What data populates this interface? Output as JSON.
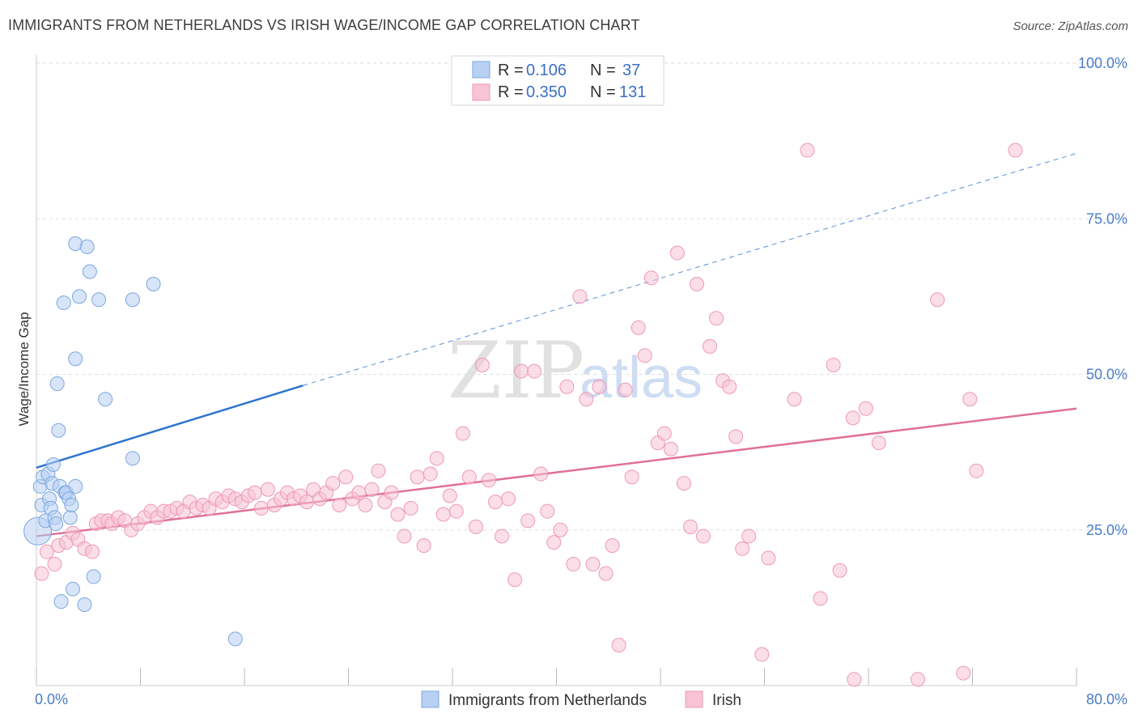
{
  "title": "IMMIGRANTS FROM NETHERLANDS VS IRISH WAGE/INCOME GAP CORRELATION CHART",
  "source": "Source: ZipAtlas.com",
  "watermark": {
    "zip": "ZIP",
    "atlas": "atlas"
  },
  "colors": {
    "blue_fill": "#b8d0f2",
    "blue_stroke": "#7aa7e0",
    "blue_line": "#2f74d0",
    "pink_fill": "#f8c3d4",
    "pink_stroke": "#ee99b6",
    "pink_line": "#e0709a",
    "tick": "#4a7cc9",
    "grid": "#dddddd"
  },
  "legend": {
    "rows": [
      {
        "r_key": "R =",
        "r_val": "0.106",
        "n_key": "N =",
        "n_val": "37"
      },
      {
        "r_key": "R =",
        "r_val": "0.350",
        "n_key": "N =",
        "n_val": "131"
      }
    ]
  },
  "bottom_legend": [
    "Immigrants from Netherlands",
    "Irish"
  ],
  "chart_data": {
    "type": "scatter",
    "title": "IMMIGRANTS FROM NETHERLANDS VS IRISH WAGE/INCOME GAP CORRELATION CHART",
    "xlabel": "",
    "ylabel": "Wage/Income Gap",
    "xlim": [
      0,
      80
    ],
    "ylim": [
      0,
      100
    ],
    "x_tick_labels": [
      "0.0%",
      "80.0%"
    ],
    "y_tick_labels": [
      "25.0%",
      "50.0%",
      "75.0%",
      "100.0%"
    ],
    "y_tick_values": [
      25,
      50,
      75,
      100
    ],
    "grid": true,
    "legend_position": "top-center",
    "series": [
      {
        "name": "Immigrants from Netherlands",
        "R": 0.106,
        "N": 37,
        "trend": {
          "x": [
            0,
            20.5
          ],
          "y": [
            35.0,
            48.2
          ],
          "dashed_to": [
            80,
            85.5
          ]
        },
        "points": [
          {
            "x": 0.1,
            "y": 24.8,
            "big": true
          },
          {
            "x": 0.3,
            "y": 32.0
          },
          {
            "x": 0.4,
            "y": 29.0
          },
          {
            "x": 0.5,
            "y": 33.5
          },
          {
            "x": 0.7,
            "y": 26.5
          },
          {
            "x": 0.9,
            "y": 34.0
          },
          {
            "x": 1.0,
            "y": 30.0
          },
          {
            "x": 1.1,
            "y": 28.5
          },
          {
            "x": 1.2,
            "y": 32.5
          },
          {
            "x": 1.3,
            "y": 35.5
          },
          {
            "x": 1.4,
            "y": 27.0
          },
          {
            "x": 1.5,
            "y": 26.0
          },
          {
            "x": 1.6,
            "y": 48.5
          },
          {
            "x": 1.7,
            "y": 41.0
          },
          {
            "x": 1.8,
            "y": 32.0
          },
          {
            "x": 1.9,
            "y": 13.5
          },
          {
            "x": 2.1,
            "y": 61.5
          },
          {
            "x": 2.2,
            "y": 31.0
          },
          {
            "x": 2.3,
            "y": 31.0
          },
          {
            "x": 2.5,
            "y": 30.0
          },
          {
            "x": 2.6,
            "y": 27.0
          },
          {
            "x": 2.7,
            "y": 29.0
          },
          {
            "x": 2.8,
            "y": 15.5
          },
          {
            "x": 3.0,
            "y": 52.5
          },
          {
            "x": 3.0,
            "y": 71.0
          },
          {
            "x": 3.0,
            "y": 32.0
          },
          {
            "x": 3.3,
            "y": 62.5
          },
          {
            "x": 3.7,
            "y": 13.0
          },
          {
            "x": 3.9,
            "y": 70.5
          },
          {
            "x": 4.1,
            "y": 66.5
          },
          {
            "x": 4.4,
            "y": 17.5
          },
          {
            "x": 4.8,
            "y": 62.0
          },
          {
            "x": 5.3,
            "y": 46.0
          },
          {
            "x": 7.4,
            "y": 62.0
          },
          {
            "x": 7.4,
            "y": 36.5
          },
          {
            "x": 9.0,
            "y": 64.5
          },
          {
            "x": 15.3,
            "y": 7.5
          }
        ]
      },
      {
        "name": "Irish",
        "R": 0.35,
        "N": 131,
        "trend": {
          "x": [
            0,
            80
          ],
          "y": [
            24.0,
            44.5
          ]
        },
        "points": [
          {
            "x": 0.4,
            "y": 18.0
          },
          {
            "x": 0.8,
            "y": 21.5
          },
          {
            "x": 1.4,
            "y": 19.5
          },
          {
            "x": 1.7,
            "y": 22.5
          },
          {
            "x": 2.3,
            "y": 23.0
          },
          {
            "x": 2.8,
            "y": 24.5
          },
          {
            "x": 3.2,
            "y": 23.5
          },
          {
            "x": 3.7,
            "y": 22.0
          },
          {
            "x": 4.3,
            "y": 21.5
          },
          {
            "x": 4.6,
            "y": 26.0
          },
          {
            "x": 5.0,
            "y": 26.5
          },
          {
            "x": 5.5,
            "y": 26.5
          },
          {
            "x": 5.8,
            "y": 26.0
          },
          {
            "x": 6.3,
            "y": 27.0
          },
          {
            "x": 6.8,
            "y": 26.5
          },
          {
            "x": 7.3,
            "y": 25.0
          },
          {
            "x": 7.8,
            "y": 26.0
          },
          {
            "x": 8.3,
            "y": 27.0
          },
          {
            "x": 8.8,
            "y": 28.0
          },
          {
            "x": 9.3,
            "y": 27.0
          },
          {
            "x": 9.8,
            "y": 28.0
          },
          {
            "x": 10.3,
            "y": 28.0
          },
          {
            "x": 10.8,
            "y": 28.5
          },
          {
            "x": 11.3,
            "y": 28.0
          },
          {
            "x": 11.8,
            "y": 29.5
          },
          {
            "x": 12.3,
            "y": 28.5
          },
          {
            "x": 12.8,
            "y": 29.0
          },
          {
            "x": 13.3,
            "y": 28.5
          },
          {
            "x": 13.8,
            "y": 30.0
          },
          {
            "x": 14.3,
            "y": 29.5
          },
          {
            "x": 14.8,
            "y": 30.5
          },
          {
            "x": 15.3,
            "y": 30.0
          },
          {
            "x": 15.8,
            "y": 29.5
          },
          {
            "x": 16.3,
            "y": 30.5
          },
          {
            "x": 16.8,
            "y": 31.0
          },
          {
            "x": 17.3,
            "y": 28.5
          },
          {
            "x": 17.8,
            "y": 31.5
          },
          {
            "x": 18.3,
            "y": 29.0
          },
          {
            "x": 18.8,
            "y": 30.0
          },
          {
            "x": 19.3,
            "y": 31.0
          },
          {
            "x": 19.8,
            "y": 30.0
          },
          {
            "x": 20.3,
            "y": 30.5
          },
          {
            "x": 20.8,
            "y": 29.5
          },
          {
            "x": 21.3,
            "y": 31.5
          },
          {
            "x": 21.8,
            "y": 30.0
          },
          {
            "x": 22.3,
            "y": 31.0
          },
          {
            "x": 22.8,
            "y": 32.5
          },
          {
            "x": 23.3,
            "y": 29.0
          },
          {
            "x": 23.8,
            "y": 33.5
          },
          {
            "x": 24.3,
            "y": 30.0
          },
          {
            "x": 24.8,
            "y": 31.0
          },
          {
            "x": 25.3,
            "y": 29.0
          },
          {
            "x": 25.8,
            "y": 31.5
          },
          {
            "x": 26.3,
            "y": 34.5
          },
          {
            "x": 26.8,
            "y": 29.5
          },
          {
            "x": 27.3,
            "y": 31.0
          },
          {
            "x": 27.8,
            "y": 27.5
          },
          {
            "x": 28.3,
            "y": 24.0
          },
          {
            "x": 28.8,
            "y": 28.5
          },
          {
            "x": 29.3,
            "y": 33.5
          },
          {
            "x": 29.8,
            "y": 22.5
          },
          {
            "x": 30.3,
            "y": 34.0
          },
          {
            "x": 30.8,
            "y": 36.5
          },
          {
            "x": 31.3,
            "y": 27.5
          },
          {
            "x": 31.8,
            "y": 30.5
          },
          {
            "x": 32.3,
            "y": 28.0
          },
          {
            "x": 32.8,
            "y": 40.5
          },
          {
            "x": 33.3,
            "y": 33.5
          },
          {
            "x": 33.8,
            "y": 25.5
          },
          {
            "x": 34.3,
            "y": 51.5
          },
          {
            "x": 34.8,
            "y": 33.0
          },
          {
            "x": 35.3,
            "y": 29.5
          },
          {
            "x": 35.8,
            "y": 24.0
          },
          {
            "x": 36.3,
            "y": 30.0
          },
          {
            "x": 36.8,
            "y": 17.0
          },
          {
            "x": 37.3,
            "y": 50.5
          },
          {
            "x": 37.8,
            "y": 26.5
          },
          {
            "x": 38.3,
            "y": 50.5
          },
          {
            "x": 38.8,
            "y": 34.0
          },
          {
            "x": 39.3,
            "y": 28.0
          },
          {
            "x": 39.8,
            "y": 23.0
          },
          {
            "x": 40.3,
            "y": 25.0
          },
          {
            "x": 40.8,
            "y": 48.0
          },
          {
            "x": 41.3,
            "y": 19.5
          },
          {
            "x": 41.8,
            "y": 62.5
          },
          {
            "x": 42.3,
            "y": 46.0
          },
          {
            "x": 42.8,
            "y": 19.5
          },
          {
            "x": 43.3,
            "y": 48.0
          },
          {
            "x": 43.8,
            "y": 18.0
          },
          {
            "x": 44.3,
            "y": 22.5
          },
          {
            "x": 44.8,
            "y": 6.5
          },
          {
            "x": 45.3,
            "y": 47.5
          },
          {
            "x": 45.8,
            "y": 33.5
          },
          {
            "x": 46.3,
            "y": 57.5
          },
          {
            "x": 46.8,
            "y": 53.0
          },
          {
            "x": 47.3,
            "y": 65.5
          },
          {
            "x": 47.8,
            "y": 39.0
          },
          {
            "x": 48.3,
            "y": 40.5
          },
          {
            "x": 48.8,
            "y": 38.0
          },
          {
            "x": 49.3,
            "y": 69.5
          },
          {
            "x": 49.8,
            "y": 32.5
          },
          {
            "x": 50.3,
            "y": 25.5
          },
          {
            "x": 50.8,
            "y": 64.5
          },
          {
            "x": 51.3,
            "y": 24.0
          },
          {
            "x": 51.8,
            "y": 54.5
          },
          {
            "x": 52.3,
            "y": 59.0
          },
          {
            "x": 52.8,
            "y": 49.0
          },
          {
            "x": 53.3,
            "y": 48.0
          },
          {
            "x": 53.8,
            "y": 40.0
          },
          {
            "x": 54.3,
            "y": 22.0
          },
          {
            "x": 54.8,
            "y": 24.0
          },
          {
            "x": 55.8,
            "y": 5.0
          },
          {
            "x": 56.3,
            "y": 20.5
          },
          {
            "x": 58.3,
            "y": 46.0
          },
          {
            "x": 59.3,
            "y": 86.0
          },
          {
            "x": 60.3,
            "y": 14.0
          },
          {
            "x": 61.3,
            "y": 51.5
          },
          {
            "x": 61.8,
            "y": 18.5
          },
          {
            "x": 62.8,
            "y": 43.0
          },
          {
            "x": 62.9,
            "y": 1.0
          },
          {
            "x": 63.8,
            "y": 44.5
          },
          {
            "x": 64.8,
            "y": 39.0
          },
          {
            "x": 67.8,
            "y": 1.0
          },
          {
            "x": 69.3,
            "y": 62.0
          },
          {
            "x": 71.3,
            "y": 2.0
          },
          {
            "x": 71.8,
            "y": 46.0
          },
          {
            "x": 72.3,
            "y": 34.5
          },
          {
            "x": 75.3,
            "y": 86.0
          }
        ]
      }
    ]
  }
}
